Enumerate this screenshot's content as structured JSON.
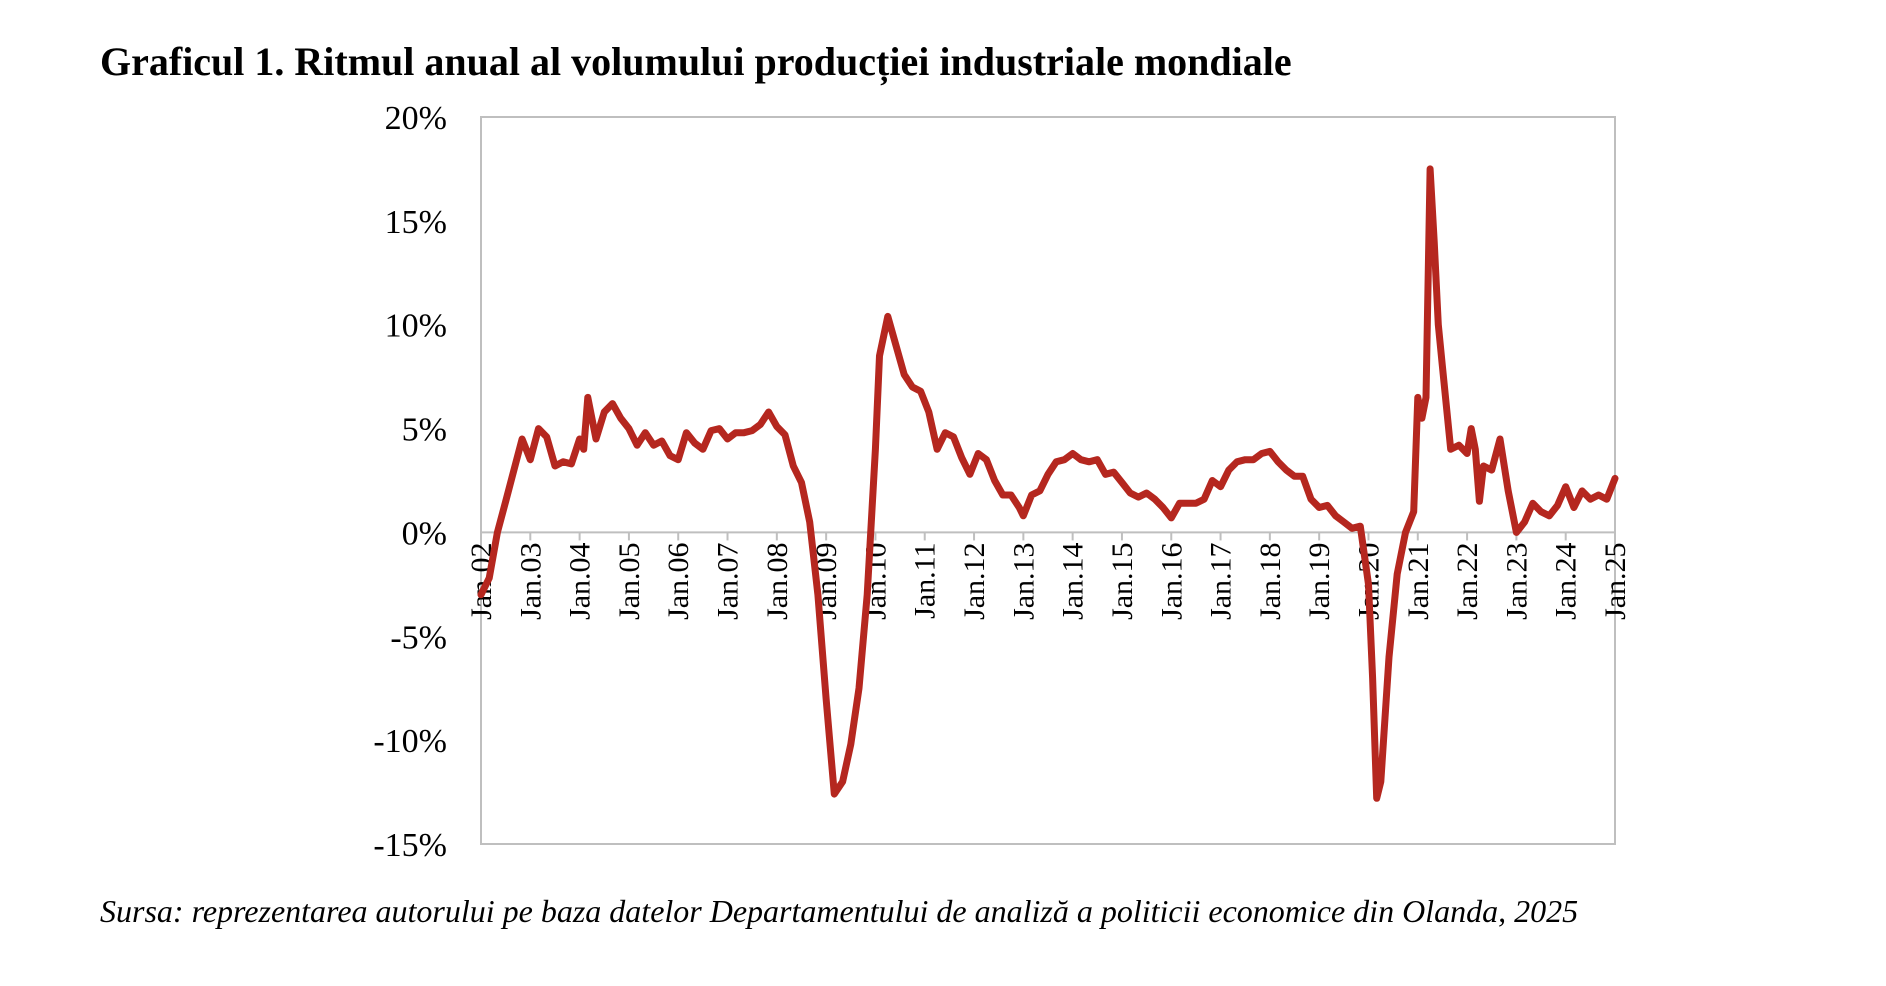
{
  "chart_data": {
    "type": "line",
    "title": "Graficul 1. Ritmul anual al volumului producției industriale mondiale",
    "source": "Sursa: reprezentarea autorului pe baza datelor Departamentului de analiză a politicii economice din Olanda, 2025",
    "xlabel": "",
    "ylabel": "",
    "ylim": [
      -15,
      20
    ],
    "yticks": [
      20,
      15,
      10,
      5,
      0,
      -5,
      -10,
      -15
    ],
    "ytick_labels": [
      "20%",
      "15%",
      "10%",
      "5%",
      "0%",
      "-5%",
      "-10%",
      "-15%"
    ],
    "xticks": [
      "Jan.02",
      "Jan.03",
      "Jan.04",
      "Jan.05",
      "Jan.06",
      "Jan.07",
      "Jan.08",
      "Jan.09",
      "Jan.10",
      "Jan.11",
      "Jan.12",
      "Jan.13",
      "Jan.14",
      "Jan.15",
      "Jan.16",
      "Jan.17",
      "Jan.18",
      "Jan.19",
      "Jan.20",
      "Jan.21",
      "Jan.22",
      "Jan.23",
      "Jan.24",
      "Jan.25"
    ],
    "grid": false,
    "line_color": "#B5271F",
    "series": [
      {
        "name": "",
        "points": [
          [
            "2002-01",
            -3.0
          ],
          [
            "2002-03",
            -2.2
          ],
          [
            "2002-05",
            0.0
          ],
          [
            "2002-07",
            1.5
          ],
          [
            "2002-09",
            3.0
          ],
          [
            "2002-11",
            4.5
          ],
          [
            "2003-01",
            3.5
          ],
          [
            "2003-03",
            5.0
          ],
          [
            "2003-05",
            4.6
          ],
          [
            "2003-07",
            3.2
          ],
          [
            "2003-09",
            3.4
          ],
          [
            "2003-11",
            3.3
          ],
          [
            "2004-01",
            4.5
          ],
          [
            "2004-02",
            4.0
          ],
          [
            "2004-03",
            6.5
          ],
          [
            "2004-05",
            4.5
          ],
          [
            "2004-07",
            5.8
          ],
          [
            "2004-09",
            6.2
          ],
          [
            "2004-11",
            5.5
          ],
          [
            "2005-01",
            5.0
          ],
          [
            "2005-03",
            4.2
          ],
          [
            "2005-05",
            4.8
          ],
          [
            "2005-07",
            4.2
          ],
          [
            "2005-09",
            4.4
          ],
          [
            "2005-11",
            3.7
          ],
          [
            "2006-01",
            3.5
          ],
          [
            "2006-03",
            4.8
          ],
          [
            "2006-05",
            4.3
          ],
          [
            "2006-07",
            4.0
          ],
          [
            "2006-09",
            4.9
          ],
          [
            "2006-11",
            5.0
          ],
          [
            "2007-01",
            4.5
          ],
          [
            "2007-03",
            4.8
          ],
          [
            "2007-05",
            4.8
          ],
          [
            "2007-07",
            4.9
          ],
          [
            "2007-09",
            5.2
          ],
          [
            "2007-11",
            5.8
          ],
          [
            "2008-01",
            5.1
          ],
          [
            "2008-03",
            4.7
          ],
          [
            "2008-05",
            3.2
          ],
          [
            "2008-07",
            2.4
          ],
          [
            "2008-09",
            0.5
          ],
          [
            "2008-11",
            -3.0
          ],
          [
            "2009-01",
            -8.0
          ],
          [
            "2009-03",
            -12.6
          ],
          [
            "2009-05",
            -12.0
          ],
          [
            "2009-07",
            -10.2
          ],
          [
            "2009-09",
            -7.5
          ],
          [
            "2009-11",
            -3.0
          ],
          [
            "2010-01",
            4.0
          ],
          [
            "2010-02",
            8.5
          ],
          [
            "2010-04",
            10.4
          ],
          [
            "2010-06",
            9.0
          ],
          [
            "2010-08",
            7.6
          ],
          [
            "2010-10",
            7.0
          ],
          [
            "2010-12",
            6.8
          ],
          [
            "2011-02",
            5.8
          ],
          [
            "2011-04",
            4.0
          ],
          [
            "2011-06",
            4.8
          ],
          [
            "2011-08",
            4.6
          ],
          [
            "2011-10",
            3.6
          ],
          [
            "2011-12",
            2.8
          ],
          [
            "2012-02",
            3.8
          ],
          [
            "2012-04",
            3.5
          ],
          [
            "2012-06",
            2.5
          ],
          [
            "2012-08",
            1.8
          ],
          [
            "2012-10",
            1.8
          ],
          [
            "2012-12",
            1.2
          ],
          [
            "2013-01",
            0.8
          ],
          [
            "2013-03",
            1.8
          ],
          [
            "2013-05",
            2.0
          ],
          [
            "2013-07",
            2.8
          ],
          [
            "2013-09",
            3.4
          ],
          [
            "2013-11",
            3.5
          ],
          [
            "2014-01",
            3.8
          ],
          [
            "2014-03",
            3.5
          ],
          [
            "2014-05",
            3.4
          ],
          [
            "2014-07",
            3.5
          ],
          [
            "2014-09",
            2.8
          ],
          [
            "2014-11",
            2.9
          ],
          [
            "2015-01",
            2.4
          ],
          [
            "2015-03",
            1.9
          ],
          [
            "2015-05",
            1.7
          ],
          [
            "2015-07",
            1.9
          ],
          [
            "2015-09",
            1.6
          ],
          [
            "2015-11",
            1.2
          ],
          [
            "2016-01",
            0.7
          ],
          [
            "2016-03",
            1.4
          ],
          [
            "2016-05",
            1.4
          ],
          [
            "2016-07",
            1.4
          ],
          [
            "2016-09",
            1.6
          ],
          [
            "2016-11",
            2.5
          ],
          [
            "2017-01",
            2.2
          ],
          [
            "2017-03",
            3.0
          ],
          [
            "2017-05",
            3.4
          ],
          [
            "2017-07",
            3.5
          ],
          [
            "2017-09",
            3.5
          ],
          [
            "2017-11",
            3.8
          ],
          [
            "2018-01",
            3.9
          ],
          [
            "2018-03",
            3.4
          ],
          [
            "2018-05",
            3.0
          ],
          [
            "2018-07",
            2.7
          ],
          [
            "2018-09",
            2.7
          ],
          [
            "2018-11",
            1.6
          ],
          [
            "2019-01",
            1.2
          ],
          [
            "2019-03",
            1.3
          ],
          [
            "2019-05",
            0.8
          ],
          [
            "2019-07",
            0.5
          ],
          [
            "2019-09",
            0.2
          ],
          [
            "2019-11",
            0.3
          ],
          [
            "2020-01",
            -2.5
          ],
          [
            "2020-02",
            -7.0
          ],
          [
            "2020-03",
            -12.8
          ],
          [
            "2020-04",
            -12.0
          ],
          [
            "2020-06",
            -6.0
          ],
          [
            "2020-08",
            -2.0
          ],
          [
            "2020-10",
            0.0
          ],
          [
            "2020-12",
            1.0
          ],
          [
            "2021-01",
            6.5
          ],
          [
            "2021-02",
            5.5
          ],
          [
            "2021-03",
            6.5
          ],
          [
            "2021-04",
            17.5
          ],
          [
            "2021-05",
            14.0
          ],
          [
            "2021-06",
            10.0
          ],
          [
            "2021-07",
            8.0
          ],
          [
            "2021-09",
            4.0
          ],
          [
            "2021-11",
            4.2
          ],
          [
            "2022-01",
            3.8
          ],
          [
            "2022-02",
            5.0
          ],
          [
            "2022-03",
            4.0
          ],
          [
            "2022-04",
            1.5
          ],
          [
            "2022-05",
            3.2
          ],
          [
            "2022-07",
            3.0
          ],
          [
            "2022-09",
            4.5
          ],
          [
            "2022-11",
            2.0
          ],
          [
            "2023-01",
            0.0
          ],
          [
            "2023-03",
            0.5
          ],
          [
            "2023-05",
            1.4
          ],
          [
            "2023-07",
            1.0
          ],
          [
            "2023-09",
            0.8
          ],
          [
            "2023-11",
            1.3
          ],
          [
            "2024-01",
            2.2
          ],
          [
            "2024-03",
            1.2
          ],
          [
            "2024-05",
            2.0
          ],
          [
            "2024-07",
            1.6
          ],
          [
            "2024-09",
            1.8
          ],
          [
            "2024-11",
            1.6
          ],
          [
            "2025-01",
            2.6
          ]
        ]
      }
    ]
  }
}
